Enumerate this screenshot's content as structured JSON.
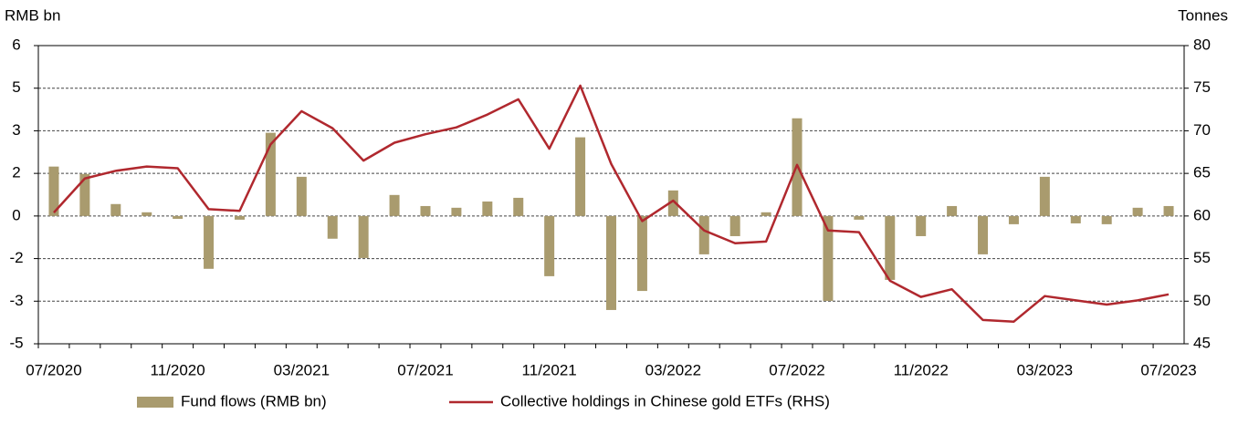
{
  "chart_data": {
    "type": "bar-line",
    "y_label": "RMB bn",
    "y2_label": "Tonnes",
    "categories": [
      "07/2020",
      null,
      null,
      null,
      "11/2020",
      null,
      null,
      null,
      "03/2021",
      null,
      null,
      null,
      "07/2021",
      null,
      null,
      null,
      "11/2021",
      null,
      null,
      null,
      "03/2022",
      null,
      null,
      null,
      "07/2022",
      null,
      null,
      null,
      "11/2022",
      null,
      null,
      null,
      "03/2023",
      null,
      null,
      null,
      "07/2023"
    ],
    "series": [
      {
        "name": "Fund flows (RMB bn)",
        "type": "bar",
        "color": "#a99b6e",
        "values": [
          1.74,
          1.48,
          0.42,
          0.13,
          -0.1,
          -1.86,
          -0.13,
          2.93,
          1.38,
          -0.8,
          -1.48,
          0.74,
          0.35,
          0.29,
          0.51,
          0.64,
          -2.12,
          2.77,
          -3.31,
          -2.64,
          0.9,
          -1.35,
          -0.71,
          0.13,
          3.44,
          -2.99,
          -0.13,
          -2.25,
          -0.71,
          0.35,
          -1.35,
          -0.29,
          1.38,
          -0.26,
          -0.29,
          0.29,
          0.35
        ]
      },
      {
        "name": "Collective holdings in Chinese gold ETFs (RHS)",
        "type": "line",
        "axis": "y2",
        "color": "#b0282e",
        "values": [
          60.4,
          64.4,
          65.3,
          65.8,
          65.6,
          60.8,
          60.6,
          68.4,
          72.3,
          70.3,
          66.5,
          68.6,
          69.6,
          70.4,
          71.9,
          73.7,
          67.9,
          75.3,
          66.1,
          59.4,
          61.8,
          58.3,
          56.8,
          57.0,
          66.0,
          58.3,
          58.1,
          52.4,
          50.5,
          51.4,
          47.8,
          47.6,
          50.6,
          50.1,
          49.6,
          50.1,
          50.8
        ]
      }
    ],
    "ylim": [
      -4.5,
      6
    ],
    "yticks": [
      {
        "value": -4.5,
        "label": "-5"
      },
      -3,
      {
        "value": -1.5,
        "label": "-2"
      },
      0,
      {
        "value": 1.5,
        "label": "2"
      },
      3,
      {
        "value": 4.5,
        "label": "5"
      },
      6
    ],
    "y2lim": [
      45,
      80
    ],
    "y2ticks": [
      45,
      50,
      55,
      60,
      65,
      70,
      75,
      80
    ],
    "grid": true,
    "legend": "bottom"
  }
}
